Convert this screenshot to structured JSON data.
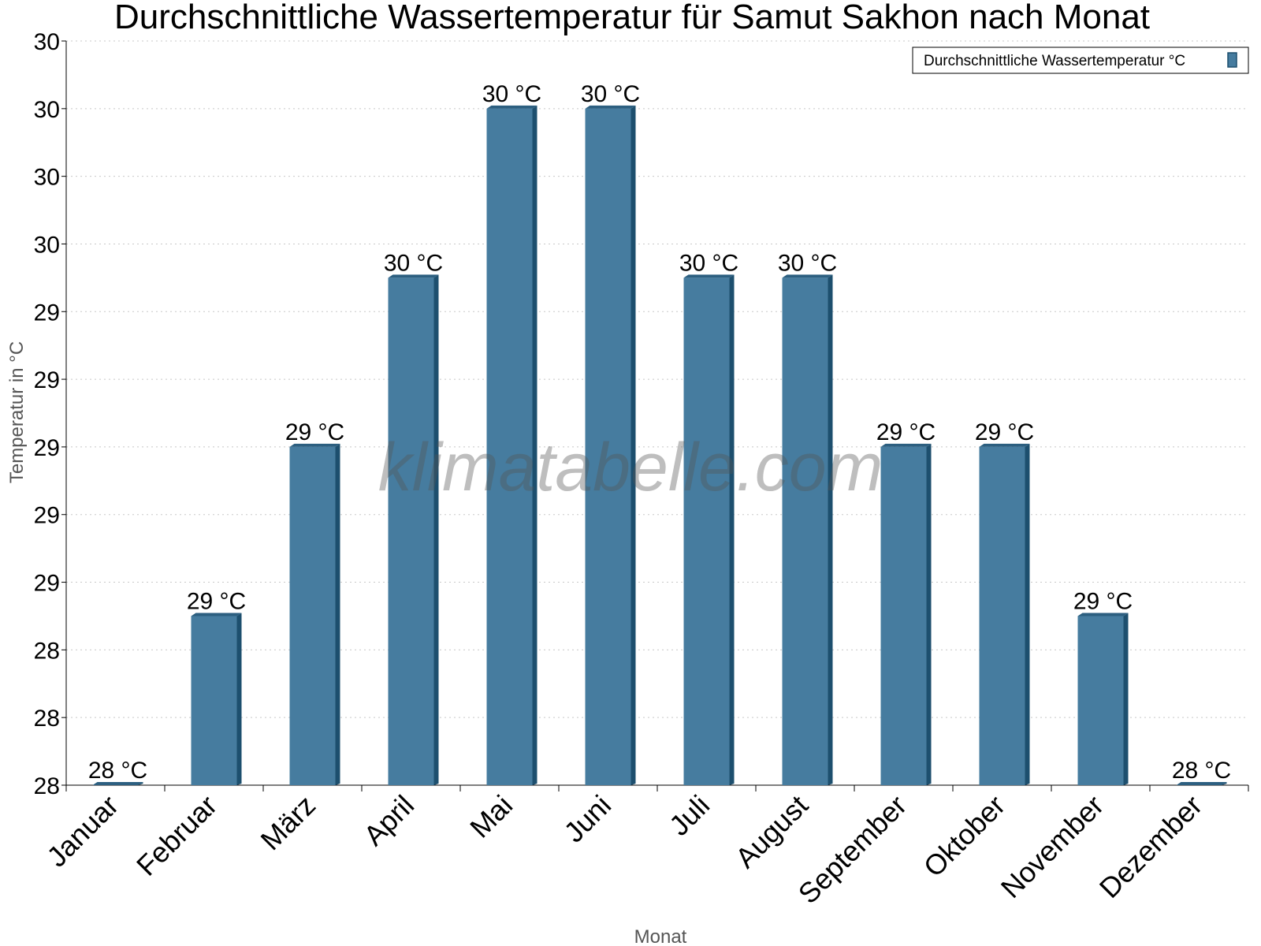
{
  "chart_data": {
    "type": "bar",
    "title": "Durchschnittliche Wassertemperatur für Samut Sakhon nach Monat",
    "xlabel": "Monat",
    "ylabel": "Temperatur in °C",
    "categories": [
      "Januar",
      "Februar",
      "März",
      "April",
      "Mai",
      "Juni",
      "Juli",
      "August",
      "September",
      "Oktober",
      "November",
      "Dezember"
    ],
    "series": [
      {
        "name": "Durchschnittliche Wassertemperatur °C",
        "values": [
          28.0,
          28.5,
          29.0,
          29.5,
          30.0,
          30.0,
          29.5,
          29.5,
          29.0,
          29.0,
          28.5,
          28.0
        ],
        "data_labels": [
          "28 °C",
          "29 °C",
          "29 °C",
          "30 °C",
          "30 °C",
          "30 °C",
          "30 °C",
          "30 °C",
          "29 °C",
          "29 °C",
          "29 °C",
          "28 °C"
        ]
      }
    ],
    "ylim": [
      28.0,
      30.2
    ],
    "yticks": [
      28.0,
      28.2,
      28.4,
      28.6,
      28.8,
      29.0,
      29.2,
      29.4,
      29.6,
      29.8,
      30.0,
      30.2
    ],
    "ytick_labels": [
      "28",
      "28",
      "28",
      "29",
      "29",
      "29",
      "29",
      "29",
      "30",
      "30",
      "30",
      "30"
    ],
    "grid": "horizontal dotted",
    "legend_position": "top-right",
    "colors": {
      "bar": "#467c9f",
      "bar_side": "#1d4f6e",
      "bar_top": "#2c5f80"
    },
    "watermark": "klimatabelle.com"
  }
}
